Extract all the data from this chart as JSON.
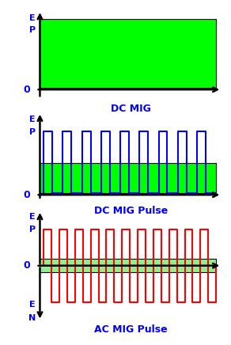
{
  "bg_color": "#ffffff",
  "green_fill": "#00ff00",
  "green_fill_ac": "#90ee90",
  "blue_line": "#0000ff",
  "red_line": "#ff0000",
  "label_color": "#0000ff",
  "axis_color": "#000000",
  "chart1_title": "DC MIG",
  "chart2_title": "DC MIG Pulse",
  "chart3_title": "AC MIG Pulse",
  "figsize": [
    2.92,
    4.36
  ],
  "dpi": 100
}
